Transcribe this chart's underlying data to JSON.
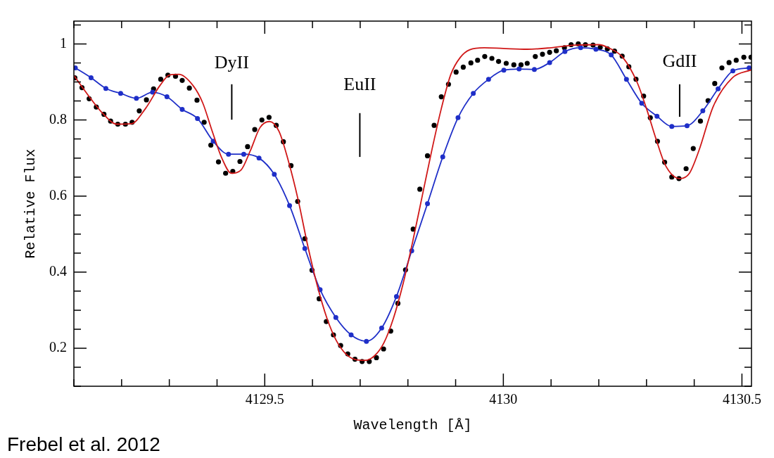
{
  "chart_data": {
    "type": "line",
    "xlabel": "Wavelength [Å]",
    "ylabel": "Relative Flux",
    "xlim": [
      4129.1,
      4130.52
    ],
    "ylim": [
      0.1,
      1.06
    ],
    "xticks": [
      {
        "value": 4129.1,
        "label": null
      },
      {
        "value": 4129.2,
        "label": null
      },
      {
        "value": 4129.3,
        "label": null
      },
      {
        "value": 4129.4,
        "label": null
      },
      4129.5,
      {
        "value": 4129.6,
        "label": null
      },
      {
        "value": 4129.7,
        "label": null
      },
      {
        "value": 4129.8,
        "label": null
      },
      {
        "value": 4129.9,
        "label": null
      },
      4130,
      {
        "value": 4130.1,
        "label": null
      },
      {
        "value": 4130.2,
        "label": null
      },
      {
        "value": 4130.3,
        "label": null
      },
      {
        "value": 4130.4,
        "label": null
      },
      4130.5
    ],
    "yticks": [
      {
        "value": 0.1,
        "label": null
      },
      {
        "value": 0.15,
        "label": null
      },
      0.2,
      {
        "value": 0.25,
        "label": null
      },
      {
        "value": 0.3,
        "label": null
      },
      {
        "value": 0.35,
        "label": null
      },
      0.4,
      {
        "value": 0.45,
        "label": null
      },
      {
        "value": 0.5,
        "label": null
      },
      {
        "value": 0.55,
        "label": null
      },
      0.6,
      {
        "value": 0.65,
        "label": null
      },
      {
        "value": 0.7,
        "label": null
      },
      {
        "value": 0.75,
        "label": null
      },
      0.8,
      {
        "value": 0.85,
        "label": null
      },
      {
        "value": 0.9,
        "label": null
      },
      {
        "value": 0.95,
        "label": null
      },
      1,
      {
        "value": 1.05,
        "label": null
      }
    ],
    "grid": false,
    "legend": false,
    "annotations": [
      "DyII",
      "EuII",
      "GdII",
      "Frebel et al. 2012"
    ],
    "series": [
      {
        "type": "scatter",
        "color": "#000000",
        "marker": "circle",
        "x": [
          4129.102,
          4129.117,
          4129.132,
          4129.147,
          4129.163,
          4129.177,
          4129.192,
          4129.208,
          4129.222,
          4129.237,
          4129.252,
          4129.267,
          4129.282,
          4129.297,
          4129.313,
          4129.327,
          4129.342,
          4129.358,
          4129.373,
          4129.387,
          4129.403,
          4129.418,
          4129.433,
          4129.448,
          4129.464,
          4129.479,
          4129.494,
          4129.509,
          4129.524,
          4129.539,
          4129.555,
          4129.569,
          4129.584,
          4129.599,
          4129.614,
          4129.629,
          4129.644,
          4129.659,
          4129.674,
          4129.689,
          4129.704,
          4129.719,
          4129.734,
          4129.749,
          4129.764,
          4129.779,
          4129.795,
          4129.811,
          4129.825,
          4129.841,
          4129.855,
          4129.87,
          4129.885,
          4129.901,
          4129.916,
          4129.932,
          4129.946,
          4129.961,
          4129.976,
          4129.99,
          4130.006,
          4130.022,
          4130.037,
          4130.05,
          4130.067,
          4130.082,
          4130.097,
          4130.111,
          4130.128,
          4130.142,
          4130.157,
          4130.172,
          4130.188,
          4130.203,
          4130.218,
          4130.233,
          4130.249,
          4130.263,
          4130.278,
          4130.294,
          4130.308,
          4130.323,
          4130.338,
          4130.353,
          4130.368,
          4130.383,
          4130.398,
          4130.413,
          4130.429,
          4130.443,
          4130.458,
          4130.473,
          4130.488,
          4130.504,
          4130.519
        ],
        "values": [
          0.911,
          0.885,
          0.856,
          0.834,
          0.815,
          0.797,
          0.789,
          0.789,
          0.794,
          0.824,
          0.853,
          0.882,
          0.907,
          0.918,
          0.915,
          0.904,
          0.884,
          0.852,
          0.794,
          0.734,
          0.69,
          0.66,
          0.665,
          0.691,
          0.73,
          0.775,
          0.8,
          0.807,
          0.786,
          0.743,
          0.68,
          0.586,
          0.488,
          0.405,
          0.33,
          0.27,
          0.235,
          0.207,
          0.185,
          0.171,
          0.165,
          0.165,
          0.175,
          0.198,
          0.245,
          0.318,
          0.406,
          0.513,
          0.618,
          0.706,
          0.786,
          0.861,
          0.894,
          0.926,
          0.939,
          0.95,
          0.957,
          0.967,
          0.962,
          0.954,
          0.949,
          0.945,
          0.945,
          0.949,
          0.967,
          0.973,
          0.978,
          0.982,
          0.99,
          0.998,
          1.0,
          0.998,
          0.997,
          0.991,
          0.987,
          0.981,
          0.968,
          0.94,
          0.907,
          0.863,
          0.806,
          0.744,
          0.689,
          0.65,
          0.646,
          0.672,
          0.725,
          0.797,
          0.851,
          0.896,
          0.937,
          0.951,
          0.957,
          0.965,
          0.965
        ]
      },
      {
        "type": "line",
        "color": "#1f2fc8",
        "marker": "circle",
        "x": [
          4129.103,
          4129.136,
          4129.167,
          4129.198,
          4129.231,
          4129.265,
          4129.295,
          4129.327,
          4129.359,
          4129.392,
          4129.424,
          4129.456,
          4129.488,
          4129.52,
          4129.552,
          4129.584,
          4129.616,
          4129.649,
          4129.681,
          4129.713,
          4129.745,
          4129.776,
          4129.808,
          4129.841,
          4129.873,
          4129.905,
          4129.937,
          4129.969,
          4130.001,
          4130.033,
          4130.065,
          4130.097,
          4130.129,
          4130.162,
          4130.194,
          4130.226,
          4130.258,
          4130.29,
          4130.322,
          4130.353,
          4130.385,
          4130.418,
          4130.45,
          4130.481,
          4130.515
        ],
        "values": [
          0.937,
          0.911,
          0.883,
          0.87,
          0.857,
          0.873,
          0.861,
          0.828,
          0.804,
          0.744,
          0.71,
          0.71,
          0.7,
          0.657,
          0.575,
          0.462,
          0.354,
          0.281,
          0.235,
          0.218,
          0.253,
          0.336,
          0.456,
          0.58,
          0.703,
          0.806,
          0.87,
          0.907,
          0.931,
          0.934,
          0.933,
          0.951,
          0.98,
          0.99,
          0.986,
          0.971,
          0.907,
          0.844,
          0.81,
          0.783,
          0.785,
          0.824,
          0.882,
          0.929,
          0.937
        ]
      },
      {
        "type": "line",
        "color": "#d01818",
        "marker": "none",
        "x": [
          4129.1,
          4129.13,
          4129.16,
          4129.19,
          4129.22,
          4129.25,
          4129.28,
          4129.3,
          4129.32,
          4129.35,
          4129.37,
          4129.39,
          4129.41,
          4129.43,
          4129.45,
          4129.47,
          4129.49,
          4129.51,
          4129.53,
          4129.55,
          4129.57,
          4129.59,
          4129.61,
          4129.63,
          4129.65,
          4129.67,
          4129.69,
          4129.71,
          4129.73,
          4129.75,
          4129.77,
          4129.79,
          4129.81,
          4129.83,
          4129.85,
          4129.87,
          4129.89,
          4129.91,
          4129.93,
          4129.96,
          4130.0,
          4130.05,
          4130.1,
          4130.15,
          4130.2,
          4130.22,
          4130.25,
          4130.28,
          4130.3,
          4130.32,
          4130.34,
          4130.37,
          4130.39,
          4130.41,
          4130.44,
          4130.48,
          4130.52
        ],
        "values": [
          0.917,
          0.865,
          0.818,
          0.789,
          0.79,
          0.83,
          0.89,
          0.918,
          0.92,
          0.89,
          0.845,
          0.77,
          0.7,
          0.66,
          0.668,
          0.72,
          0.78,
          0.796,
          0.77,
          0.69,
          0.59,
          0.47,
          0.365,
          0.28,
          0.22,
          0.185,
          0.17,
          0.168,
          0.18,
          0.215,
          0.28,
          0.37,
          0.48,
          0.6,
          0.72,
          0.83,
          0.92,
          0.965,
          0.985,
          0.99,
          0.988,
          0.986,
          0.99,
          0.997,
          0.998,
          0.99,
          0.965,
          0.9,
          0.83,
          0.75,
          0.68,
          0.646,
          0.66,
          0.72,
          0.836,
          0.911,
          0.932
        ]
      }
    ]
  }
}
